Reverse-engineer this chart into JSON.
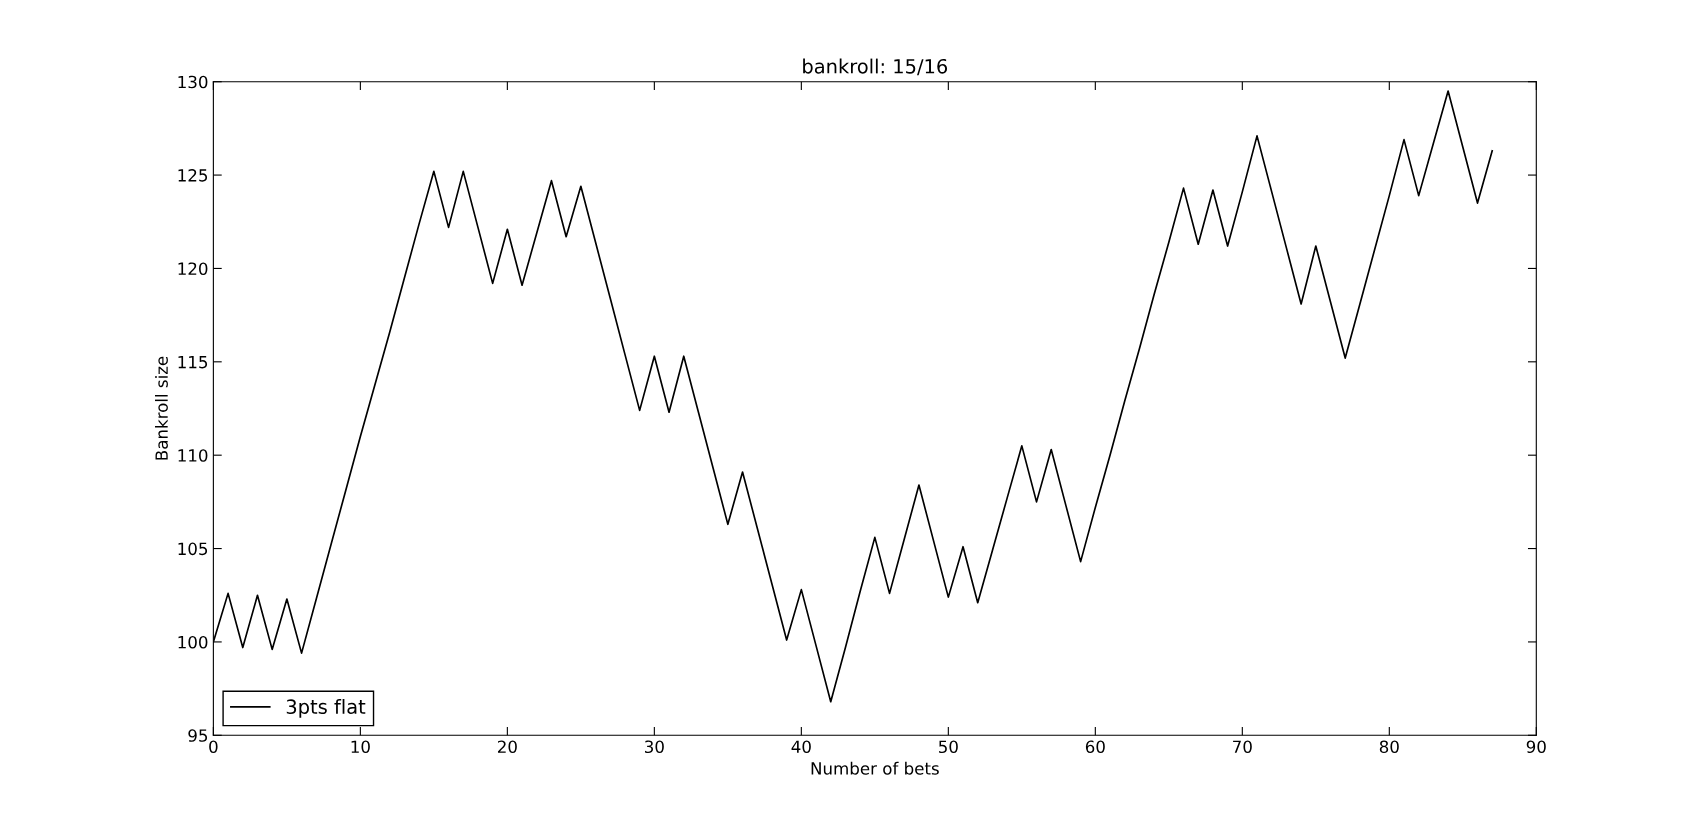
{
  "chart_data": {
    "type": "line",
    "title": "bankroll: 15/16",
    "xlabel": "Number of bets",
    "ylabel": "Bankroll size",
    "xlim": [
      0,
      90
    ],
    "xticks": [
      0,
      10,
      20,
      30,
      40,
      50,
      60,
      70,
      80,
      90
    ],
    "ylim": [
      95,
      130
    ],
    "yticks": [
      95,
      100,
      105,
      110,
      115,
      120,
      125,
      130
    ],
    "grid": false,
    "legend": "bottom left",
    "marker": "none",
    "line_style": "solid",
    "x": [
      0,
      1,
      2,
      3,
      4,
      5,
      6,
      7,
      8,
      9,
      10,
      11,
      12,
      13,
      14,
      15,
      16,
      17,
      18,
      19,
      20,
      21,
      22,
      23,
      24,
      25,
      26,
      27,
      28,
      29,
      30,
      31,
      32,
      33,
      34,
      35,
      36,
      37,
      38,
      39,
      40,
      41,
      42,
      43,
      44,
      45,
      46,
      47,
      48,
      49,
      50,
      51,
      52,
      53,
      54,
      55,
      56,
      57,
      58,
      59,
      60,
      61,
      62,
      63,
      64,
      65,
      66,
      67,
      68,
      69,
      70,
      71,
      72,
      73,
      74,
      75,
      76,
      77,
      78,
      79,
      80,
      81,
      82,
      83,
      84,
      85,
      86,
      87
    ],
    "series": [
      {
        "name": "3pts flat",
        "color": "#000000",
        "values": [
          100,
          102.6,
          99.7,
          102.5,
          99.6,
          102.3,
          99.4,
          102.3,
          105.2,
          108.1,
          111,
          113.8,
          116.6,
          119.5,
          122.4,
          125.2,
          122.2,
          125.2,
          122.2,
          119.2,
          122.1,
          119.1,
          121.9,
          124.7,
          121.7,
          124.4,
          121.4,
          118.4,
          115.4,
          112.4,
          115.3,
          112.3,
          115.3,
          112.3,
          109.3,
          106.3,
          109.1,
          106.1,
          103.1,
          100.1,
          102.8,
          99.8,
          96.8,
          99.7,
          102.7,
          105.6,
          102.6,
          105.5,
          108.4,
          105.4,
          102.4,
          105.1,
          102.1,
          104.9,
          107.7,
          110.5,
          107.5,
          110.3,
          107.3,
          104.3,
          107.2,
          110,
          112.9,
          115.7,
          118.6,
          121.4,
          124.3,
          121.3,
          124.2,
          121.2,
          124.1,
          127.1,
          124.1,
          121.1,
          118.1,
          121.2,
          118.2,
          115.2,
          118.1,
          121,
          123.9,
          126.9,
          123.9,
          126.7,
          129.5,
          126.5,
          123.5,
          126.3
        ]
      }
    ]
  }
}
